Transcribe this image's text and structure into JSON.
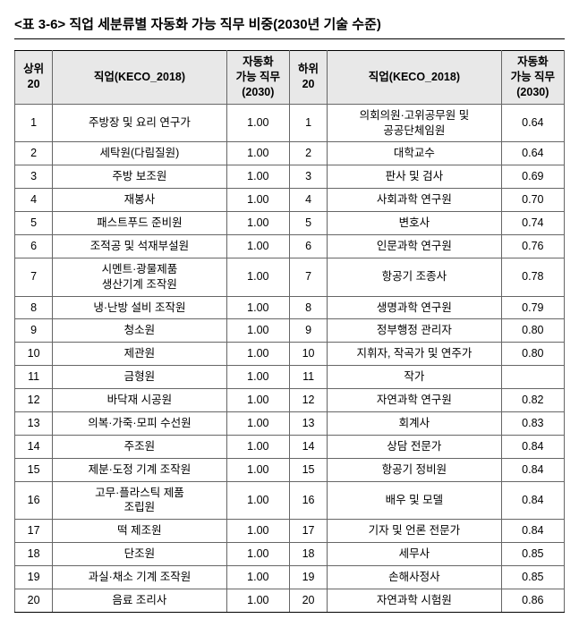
{
  "title": "<표 3-6> 직업 세분류별 자동화 가능 직무 비중(2030년 기술 수준)",
  "header": {
    "rank_top": "상위\n20",
    "job": "직업(KECO_2018)",
    "val": "자동화\n가능 직무\n(2030)",
    "rank_bottom": "하위\n20"
  },
  "rows": [
    {
      "r1": "1",
      "j1": "주방장 및 요리 연구가",
      "v1": "1.00",
      "r2": "1",
      "j2": "의회의원·고위공무원 및\n공공단체임원",
      "v2": "0.64"
    },
    {
      "r1": "2",
      "j1": "세탁원(다림질원)",
      "v1": "1.00",
      "r2": "2",
      "j2": "대학교수",
      "v2": "0.64"
    },
    {
      "r1": "3",
      "j1": "주방 보조원",
      "v1": "1.00",
      "r2": "3",
      "j2": "판사 및 검사",
      "v2": "0.69"
    },
    {
      "r1": "4",
      "j1": "재봉사",
      "v1": "1.00",
      "r2": "4",
      "j2": "사회과학 연구원",
      "v2": "0.70"
    },
    {
      "r1": "5",
      "j1": "패스트푸드 준비원",
      "v1": "1.00",
      "r2": "5",
      "j2": "변호사",
      "v2": "0.74"
    },
    {
      "r1": "6",
      "j1": "조적공 및 석재부설원",
      "v1": "1.00",
      "r2": "6",
      "j2": "인문과학 연구원",
      "v2": "0.76"
    },
    {
      "r1": "7",
      "j1": "시멘트·광물제품\n생산기계 조작원",
      "v1": "1.00",
      "r2": "7",
      "j2": "항공기 조종사",
      "v2": "0.78"
    },
    {
      "r1": "8",
      "j1": "냉·난방 설비 조작원",
      "v1": "1.00",
      "r2": "8",
      "j2": "생명과학 연구원",
      "v2": "0.79"
    },
    {
      "r1": "9",
      "j1": "청소원",
      "v1": "1.00",
      "r2": "9",
      "j2": "정부행정 관리자",
      "v2": "0.80"
    },
    {
      "r1": "10",
      "j1": "제관원",
      "v1": "1.00",
      "r2": "10",
      "j2": "지휘자, 작곡가 및 연주가",
      "v2": "0.80"
    },
    {
      "r1": "11",
      "j1": "금형원",
      "v1": "1.00",
      "r2": "11",
      "j2": "작가",
      "v2": ""
    },
    {
      "r1": "12",
      "j1": "바닥재 시공원",
      "v1": "1.00",
      "r2": "12",
      "j2": "자연과학 연구원",
      "v2": "0.82"
    },
    {
      "r1": "13",
      "j1": "의복·가죽·모피 수선원",
      "v1": "1.00",
      "r2": "13",
      "j2": "회계사",
      "v2": "0.83"
    },
    {
      "r1": "14",
      "j1": "주조원",
      "v1": "1.00",
      "r2": "14",
      "j2": "상담 전문가",
      "v2": "0.84"
    },
    {
      "r1": "15",
      "j1": "제분·도정 기계 조작원",
      "v1": "1.00",
      "r2": "15",
      "j2": "항공기 정비원",
      "v2": "0.84"
    },
    {
      "r1": "16",
      "j1": "고무·플라스틱 제품\n조립원",
      "v1": "1.00",
      "r2": "16",
      "j2": "배우 및 모델",
      "v2": "0.84"
    },
    {
      "r1": "17",
      "j1": "떡 제조원",
      "v1": "1.00",
      "r2": "17",
      "j2": "기자 및 언론 전문가",
      "v2": "0.84"
    },
    {
      "r1": "18",
      "j1": "단조원",
      "v1": "1.00",
      "r2": "18",
      "j2": "세무사",
      "v2": "0.85"
    },
    {
      "r1": "19",
      "j1": "과실·채소 기계 조작원",
      "v1": "1.00",
      "r2": "19",
      "j2": "손해사정사",
      "v2": "0.85"
    },
    {
      "r1": "20",
      "j1": "음료 조리사",
      "v1": "1.00",
      "r2": "20",
      "j2": "자연과학 시험원",
      "v2": "0.86"
    }
  ]
}
